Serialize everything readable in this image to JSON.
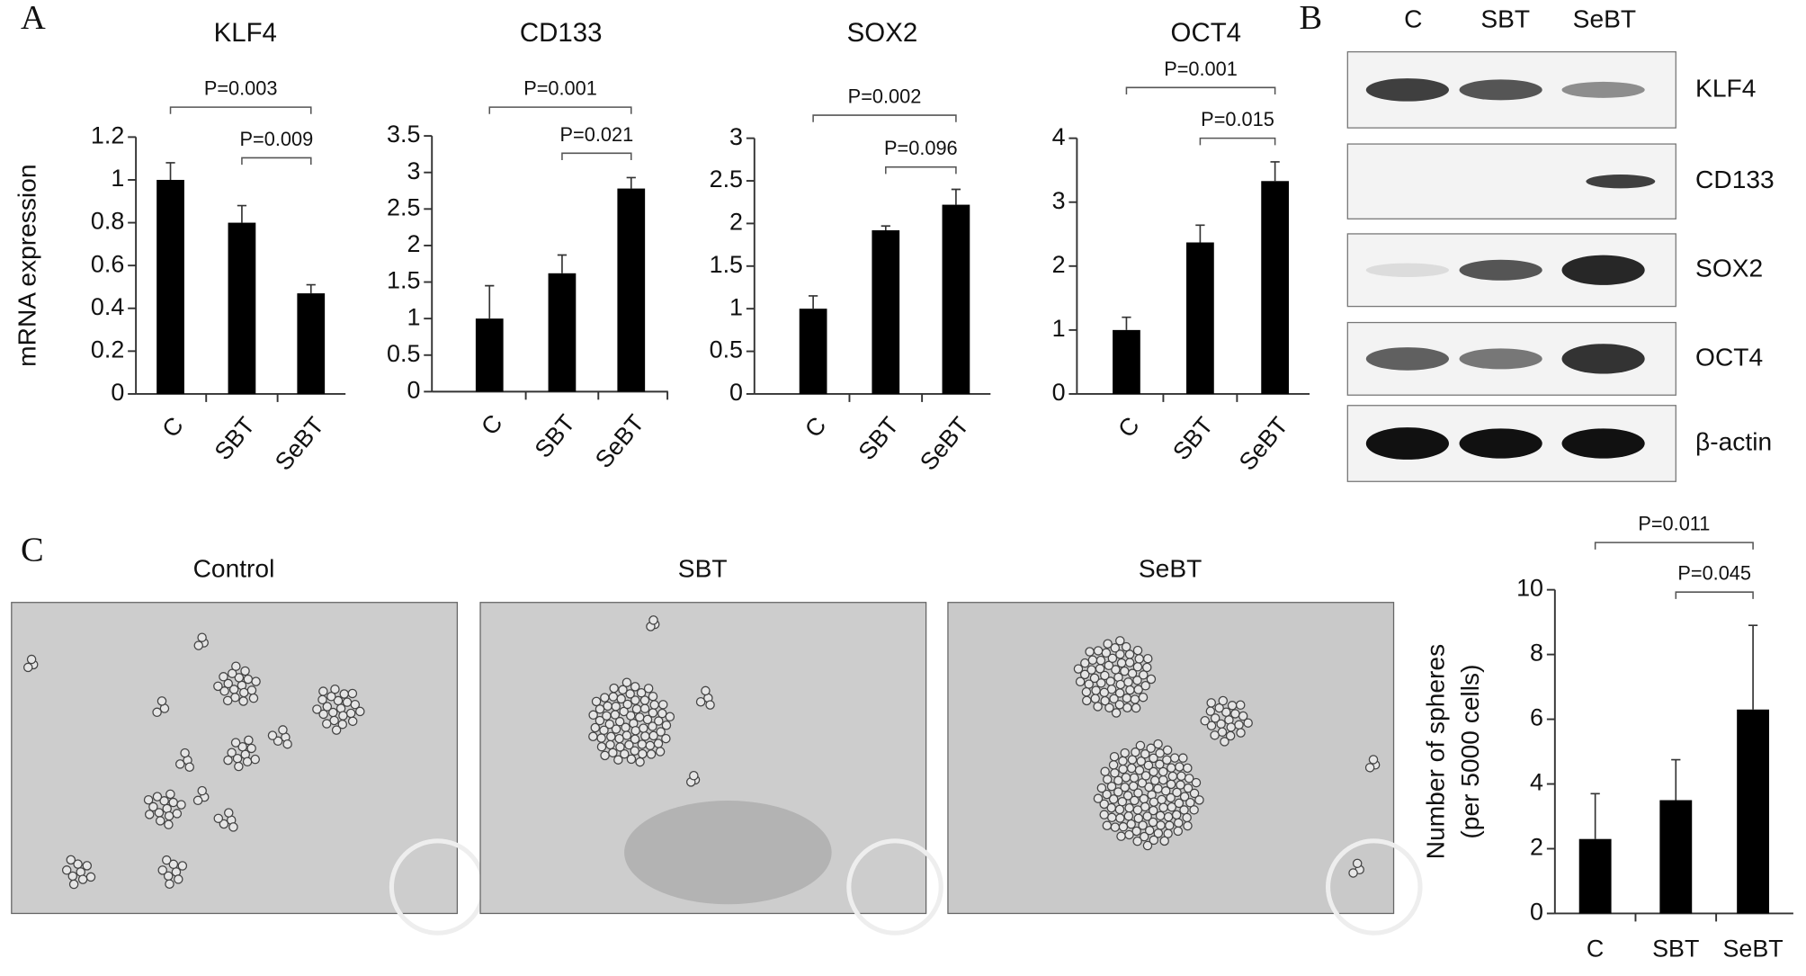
{
  "panel_labels": [
    "A",
    "B",
    "C"
  ],
  "blot": {
    "columns": [
      "C",
      "SBT",
      "SeBT"
    ],
    "rows": [
      "KLF4",
      "CD133",
      "SOX2",
      "OCT4",
      "β-actin"
    ]
  },
  "images": {
    "labels": [
      "Control",
      "SBT",
      "SeBT"
    ]
  },
  "chart_data": [
    {
      "type": "bar",
      "title": "KLF4",
      "ylabel": [
        "mRNA expression"
      ],
      "categories": [
        "C",
        "SBT",
        "SeBT"
      ],
      "values": [
        1,
        0.8,
        0.47
      ],
      "errors": [
        0.08,
        0.08,
        0.04
      ],
      "color": "#000000",
      "ylim": [
        0,
        1.2
      ],
      "yticks": [
        0,
        0.2,
        0.4,
        0.6,
        0.8,
        1,
        1.2
      ],
      "pvalues": [
        "P=0.003",
        "P=0.009"
      ]
    },
    {
      "type": "bar",
      "title": "CD133",
      "categories": [
        "C",
        "SBT",
        "SeBT"
      ],
      "values": [
        1,
        1.62,
        2.78
      ],
      "errors": [
        0.45,
        0.25,
        0.15
      ],
      "color": "#000000",
      "ylim": [
        0,
        3.5
      ],
      "yticks": [
        0,
        0.5,
        1,
        1.5,
        2,
        2.5,
        3,
        3.5
      ],
      "pvalues": [
        "P=0.001",
        "P=0.021"
      ]
    },
    {
      "type": "bar",
      "title": "SOX2",
      "categories": [
        "C",
        "SBT",
        "SeBT"
      ],
      "values": [
        1,
        1.92,
        2.22
      ],
      "errors": [
        0.15,
        0.05,
        0.18
      ],
      "color": "#000000",
      "ylim": [
        0,
        3
      ],
      "yticks": [
        0,
        0.5,
        1,
        1.5,
        2,
        2.5,
        3
      ],
      "pvalues": [
        "P=0.002",
        "P=0.096"
      ]
    },
    {
      "type": "bar",
      "title": "OCT4",
      "categories": [
        "C",
        "SBT",
        "SeBT"
      ],
      "values": [
        1,
        2.37,
        3.33
      ],
      "errors": [
        0.2,
        0.27,
        0.3
      ],
      "color": "#000000",
      "ylim": [
        0,
        4
      ],
      "yticks": [
        0,
        1,
        2,
        3,
        4
      ],
      "pvalues": [
        "P=0.001",
        "P=0.015"
      ]
    },
    {
      "type": "bar",
      "ylabel": [
        "Number of spheres",
        "(per 5000 cells)"
      ],
      "categories": [
        "C",
        "SBT",
        "SeBT"
      ],
      "values": [
        2.3,
        3.5,
        6.3
      ],
      "errors": [
        1.4,
        1.25,
        2.6
      ],
      "color": "#000000",
      "ylim": [
        0,
        10
      ],
      "yticks": [
        0,
        2,
        4,
        6,
        8,
        10
      ],
      "pvalues": [
        "P=0.011",
        "P=0.045"
      ]
    }
  ]
}
